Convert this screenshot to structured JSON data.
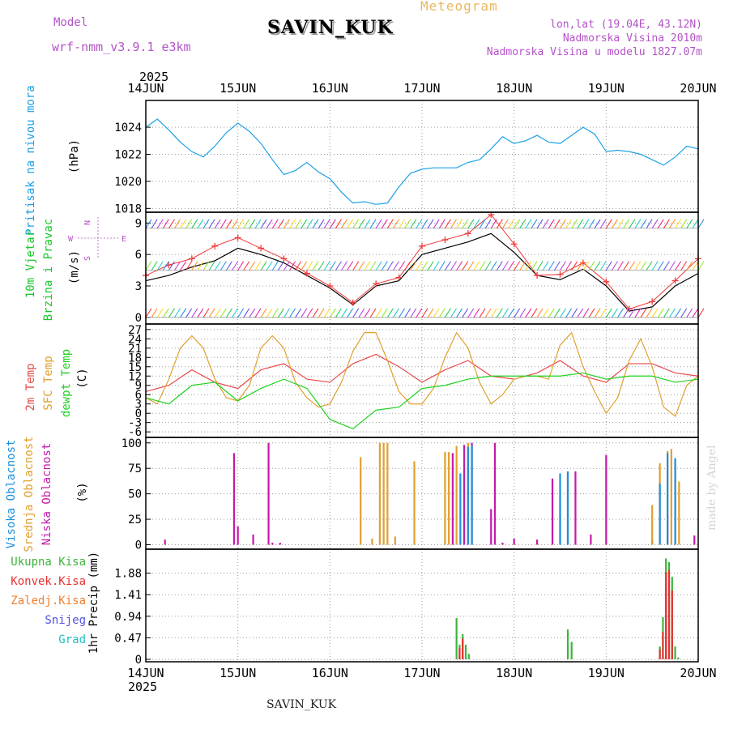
{
  "header": {
    "model_label": "Model",
    "model_version": "wrf-nmm_v3.9.1  e3km",
    "station_name": "SAVIN_KUK",
    "product": "Meteogram",
    "lonlat": "lon,lat (19.04E, 43.12N)",
    "elevation": "Nadmorska Visina 2010m",
    "model_elevation": "Nadmorska Visina u modelu 1827.07m"
  },
  "footer": {
    "station_name": "SAVIN_KUK",
    "credit": "made by Angel"
  },
  "colors": {
    "model": "#b452c8",
    "product": "#e8b860",
    "info": "#b452c8",
    "pressure": "#1ca0e6",
    "wind_label": "#19c82b",
    "wind_units": "#b452c8",
    "wind_obs": "#f23a3a",
    "wind_model": "#000000",
    "t2m": "#e84a4a",
    "tsfc": "#e0a030",
    "dewpt": "#1ed21e",
    "cloud_high": "#1c90e0",
    "cloud_mid": "#e0a030",
    "cloud_low": "#c41aa8",
    "precip_total": "#3cb43c",
    "precip_conv": "#e83030",
    "precip_ice": "#f08030",
    "precip_snow": "#5050e0",
    "precip_hail": "#20c0c0",
    "axis": "#000000"
  },
  "chart_data": {
    "type": "meteogram",
    "year": "2025",
    "time_axis": {
      "start": "2025-06-14T00:00",
      "end": "2025-06-20T00:00",
      "labels": [
        "14JUN",
        "15JUN",
        "16JUN",
        "17JUN",
        "18JUN",
        "19JUN",
        "20JUN"
      ]
    },
    "panels": [
      {
        "id": "pressure",
        "type": "line",
        "ylabel": [
          "Pritisak na nivou mora",
          "(hPa)"
        ],
        "ylim": [
          1017.9,
          1025.8
        ],
        "yticks": [
          1018,
          1020,
          1022,
          1024
        ],
        "series": [
          {
            "name": "Pritisak na nivou mora",
            "color": "#1ca0e6",
            "x": [
              0,
              3,
              6,
              9,
              12,
              15,
              18,
              21,
              24,
              27,
              30,
              33,
              36,
              39,
              42,
              45,
              48,
              51,
              54,
              57,
              60,
              63,
              66,
              69,
              72,
              75,
              78,
              81,
              84,
              87,
              90,
              93,
              96,
              99,
              102,
              105,
              108,
              111,
              114,
              117,
              120,
              123,
              126,
              129,
              132,
              135,
              138,
              141,
              144
            ],
            "y": [
              1024,
              1024.6,
              1023.8,
              1022.9,
              1022.2,
              1021.8,
              1022.6,
              1023.6,
              1024.3,
              1023.7,
              1022.8,
              1021.6,
              1020.5,
              1020.8,
              1021.4,
              1020.7,
              1020.2,
              1019.2,
              1018.4,
              1018.5,
              1018.3,
              1018.4,
              1019.6,
              1020.6,
              1020.9,
              1021,
              1021,
              1021,
              1021.4,
              1021.6,
              1022.4,
              1023.3,
              1022.8,
              1023,
              1023.4,
              1022.9,
              1022.8,
              1023.4,
              1024,
              1023.5,
              1022.2,
              1022.3,
              1022.2,
              1022,
              1021.6,
              1021.2,
              1021.8,
              1022.6,
              1022.4
            ]
          }
        ]
      },
      {
        "id": "wind",
        "type": "line+barbs",
        "ylabel": [
          "10m Vjetar",
          "Brzina i Pravac",
          "(m/s)"
        ],
        "compass": [
          "N",
          "S",
          "W",
          "E"
        ],
        "ylim": [
          -0.4,
          9.8
        ],
        "yticks": [
          0,
          3,
          6,
          9
        ],
        "series": [
          {
            "name": "Brzina",
            "color": "#000000",
            "x": [
              0,
              6,
              12,
              18,
              24,
              30,
              36,
              42,
              48,
              54,
              60,
              66,
              72,
              78,
              84,
              90,
              96,
              102,
              108,
              114,
              120,
              126,
              132,
              138,
              144
            ],
            "y": [
              3.5,
              4,
              4.8,
              5.4,
              6.6,
              6,
              5.2,
              4,
              2.8,
              1.2,
              3,
              3.5,
              6,
              6.6,
              7.2,
              8,
              6.2,
              4,
              3.6,
              4.6,
              3,
              0.6,
              1,
              3,
              4.2
            ]
          },
          {
            "name": "Brzina (obs)",
            "color": "#f23a3a",
            "marker": "+",
            "x": [
              0,
              6,
              12,
              18,
              24,
              30,
              36,
              42,
              48,
              54,
              60,
              66,
              72,
              78,
              84,
              90,
              96,
              102,
              108,
              114,
              120,
              126,
              132,
              138,
              144
            ],
            "y": [
              4,
              5,
              5.6,
              6.8,
              7.6,
              6.6,
              5.6,
              4.2,
              3,
              1.4,
              3.2,
              3.8,
              6.8,
              7.4,
              8,
              9.8,
              7,
              4,
              4.1,
              5.2,
              3.4,
              0.8,
              1.5,
              3.5,
              5.6
            ]
          }
        ],
        "barb_rows": [
          0,
          4.5,
          8.5
        ]
      },
      {
        "id": "temperature",
        "type": "line",
        "ylabel": [
          "2m Temp",
          "SFC Temp",
          "dewpt Temp",
          "(C)"
        ],
        "ylim": [
          -7,
          28
        ],
        "yticks": [
          -6,
          -3,
          0,
          3,
          6,
          9,
          12,
          15,
          18,
          21,
          24,
          27
        ],
        "series": [
          {
            "name": "2m Temp",
            "color": "#e84a4a",
            "x": [
              0,
              6,
              12,
              18,
              24,
              30,
              36,
              42,
              48,
              54,
              60,
              66,
              72,
              78,
              84,
              90,
              96,
              102,
              108,
              114,
              120,
              126,
              132,
              138,
              144
            ],
            "y": [
              7,
              9,
              14,
              10,
              8,
              14,
              16,
              11,
              10,
              16,
              19,
              15,
              10,
              14,
              17,
              12,
              11,
              13,
              17,
              12,
              10,
              16,
              16,
              13,
              12
            ]
          },
          {
            "name": "SFC Temp",
            "color": "#e0a030",
            "x": [
              0,
              3,
              6,
              9,
              12,
              15,
              18,
              21,
              24,
              27,
              30,
              33,
              36,
              39,
              42,
              45,
              48,
              51,
              54,
              57,
              60,
              63,
              66,
              69,
              72,
              75,
              78,
              81,
              84,
              87,
              90,
              93,
              96,
              99,
              102,
              105,
              108,
              111,
              114,
              117,
              120,
              123,
              126,
              129,
              132,
              135,
              138,
              141,
              144
            ],
            "y": [
              5,
              3,
              11,
              21,
              25,
              21,
              11,
              5,
              4,
              9,
              21,
              25,
              21,
              10,
              5,
              2,
              3,
              10,
              20,
              26,
              26,
              17,
              7,
              3,
              3,
              8,
              18,
              26,
              21,
              10,
              3,
              6,
              11,
              12,
              12,
              11,
              22,
              26,
              15,
              7,
              0,
              5,
              17,
              24,
              15,
              2,
              -1,
              9,
              12
            ]
          },
          {
            "name": "dewpt Temp",
            "color": "#1ed21e",
            "x": [
              0,
              6,
              12,
              18,
              24,
              30,
              36,
              42,
              48,
              54,
              60,
              66,
              72,
              78,
              84,
              90,
              96,
              102,
              108,
              114,
              120,
              126,
              132,
              138,
              144
            ],
            "y": [
              5,
              3,
              9,
              10,
              4,
              8,
              11,
              8,
              -2,
              -5,
              1,
              2,
              8,
              9,
              11,
              12,
              12,
              12,
              12,
              13,
              11,
              12,
              12,
              10,
              11
            ]
          }
        ]
      },
      {
        "id": "cloud",
        "type": "bar",
        "ylabel": [
          "Visoka Oblacnost",
          "Srednja Oblacnost",
          "Niska Oblacnost",
          "(%)"
        ],
        "ylim": [
          -2,
          103
        ],
        "yticks": [
          0,
          25,
          50,
          75,
          100
        ],
        "series": [
          {
            "name": "Niska Oblacnost",
            "color": "#c41aa8",
            "x": [
              5,
              23,
              24,
              28,
              32,
              33,
              35,
              80,
              83,
              85,
              90,
              91,
              93,
              96,
              102,
              106,
              112,
              116,
              120,
              132,
              136,
              143
            ],
            "y": [
              5,
              90,
              18,
              10,
              100,
              2,
              2,
              90,
              98,
              100,
              35,
              100,
              2,
              6,
              5,
              65,
              72,
              10,
              88,
              4,
              30,
              9
            ]
          },
          {
            "name": "Srednja Oblacnost",
            "color": "#e0a030",
            "x": [
              56,
              59,
              61,
              62,
              63,
              65,
              70,
              78,
              79,
              81,
              84,
              108,
              110,
              132,
              134,
              136,
              137,
              138,
              139
            ],
            "y": [
              86,
              6,
              100,
              100,
              100,
              8,
              82,
              91,
              91,
              97,
              100,
              46,
              70,
              39,
              80,
              92,
              94,
              80,
              62
            ]
          },
          {
            "name": "Visoka Oblacnost",
            "color": "#1c90e0",
            "x": [
              82,
              84,
              85,
              108,
              110,
              134,
              136,
              138
            ],
            "y": [
              70,
              96,
              98,
              70,
              72,
              60,
              90,
              85
            ]
          }
        ]
      },
      {
        "id": "precip",
        "type": "bar",
        "ylabel": [
          "1hr Precip (mm)"
        ],
        "legend": [
          "Ukupna Kisa",
          "Konvek.Kisa",
          "Zaledj.Kisa",
          "Snijeg",
          "Grad"
        ],
        "ylim": [
          0,
          2.35
        ],
        "yticks": [
          0,
          0.47,
          0.94,
          1.41,
          1.88
        ],
        "series": [
          {
            "name": "Ukupna Kisa",
            "color": "#3cb43c",
            "x": [
              81,
              81.8,
              82.6,
              83.4,
              84.2,
              110,
              111,
              134,
              134.8,
              135.6,
              136.4,
              137.2,
              138,
              138.8
            ],
            "y": [
              0.9,
              0.32,
              0.55,
              0.32,
              0.12,
              0.65,
              0.38,
              0.28,
              0.92,
              2.2,
              2.12,
              1.8,
              0.28,
              0.04
            ]
          },
          {
            "name": "Konvek.Kisa",
            "color": "#e83030",
            "x": [
              81.8,
              82.6,
              134,
              134.8,
              135.6,
              136.4,
              137.2
            ],
            "y": [
              0.25,
              0.45,
              0.22,
              0.6,
              1.9,
              1.95,
              1.5
            ]
          }
        ]
      }
    ]
  }
}
